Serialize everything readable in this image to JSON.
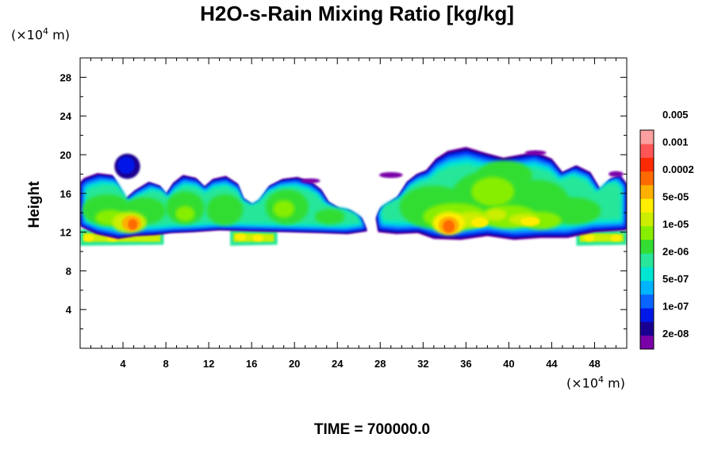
{
  "chart_data": {
    "type": "heatmap",
    "title": "H2O-s-Rain Mixing Ratio [kg/kg]",
    "xlabel": "",
    "ylabel": "Height",
    "x_unit": "(×10⁴ m)",
    "y_unit": "(×10⁴ m)",
    "x_unit_parts": {
      "prefix": "(×10",
      "exp": "4",
      "suffix": " m)"
    },
    "y_unit_parts": {
      "prefix": "(×10",
      "exp": "4",
      "suffix": " m)"
    },
    "xlim": [
      0,
      51
    ],
    "ylim": [
      0,
      30
    ],
    "x_ticks": [
      "4",
      "8",
      "12",
      "16",
      "20",
      "24",
      "28",
      "32",
      "36",
      "40",
      "44",
      "48"
    ],
    "y_ticks": [
      "4",
      "8",
      "12",
      "16",
      "20",
      "24",
      "28"
    ],
    "footer": "TIME = 700000.0",
    "colorbar": {
      "labels": [
        "2e-08",
        "1e-07",
        "5e-07",
        "2e-06",
        "1e-05",
        "5e-05",
        "0.0002",
        "0.001",
        "0.005"
      ],
      "colors": [
        "#7a00a8",
        "#1a0090",
        "#0018e8",
        "#0a64ff",
        "#00b4ff",
        "#00e6d2",
        "#28e69a",
        "#33dd33",
        "#88ee00",
        "#ccee00",
        "#ffee00",
        "#ffb000",
        "#ff6a00",
        "#ff2a00",
        "#ff5555",
        "#ffa0a0"
      ]
    },
    "features": [
      {
        "name": "main-cloud-band",
        "x_range": [
          0,
          51
        ],
        "y_range": [
          11.5,
          20
        ]
      },
      {
        "name": "isolated-cell",
        "x_range": [
          3.2,
          5.5
        ],
        "y_range": [
          17.5,
          20
        ]
      },
      {
        "name": "rain-maximum-west",
        "x": 4.8,
        "y": 12.8
      },
      {
        "name": "rain-maximum-east",
        "x": 34.4,
        "y": 12.6
      },
      {
        "name": "lower-rain-layer",
        "y": 11.4
      }
    ]
  }
}
